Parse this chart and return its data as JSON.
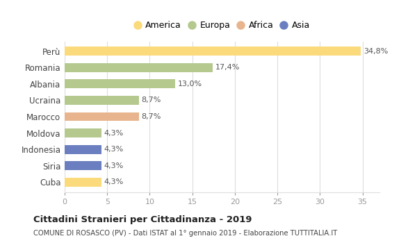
{
  "countries": [
    "Perù",
    "Romania",
    "Albania",
    "Ucraina",
    "Marocco",
    "Moldova",
    "Indonesia",
    "Siria",
    "Cuba"
  ],
  "values": [
    34.8,
    17.4,
    13.0,
    8.7,
    8.7,
    4.3,
    4.3,
    4.3,
    4.3
  ],
  "labels": [
    "34,8%",
    "17,4%",
    "13,0%",
    "8,7%",
    "8,7%",
    "4,3%",
    "4,3%",
    "4,3%",
    "4,3%"
  ],
  "colors": [
    "#FADA7A",
    "#B5C98E",
    "#B5C98E",
    "#B5C98E",
    "#E8B48E",
    "#B5C98E",
    "#6B7FC0",
    "#6B7FC0",
    "#FADA7A"
  ],
  "legend": [
    {
      "label": "America",
      "color": "#FADA7A"
    },
    {
      "label": "Europa",
      "color": "#B5C98E"
    },
    {
      "label": "Africa",
      "color": "#E8B48E"
    },
    {
      "label": "Asia",
      "color": "#6B7FC0"
    }
  ],
  "xlim": [
    0,
    37
  ],
  "xticks": [
    0,
    5,
    10,
    15,
    20,
    25,
    30,
    35
  ],
  "title": "Cittadini Stranieri per Cittadinanza - 2019",
  "subtitle": "COMUNE DI ROSASCO (PV) - Dati ISTAT al 1° gennaio 2019 - Elaborazione TUTTITALIA.IT",
  "bg_color": "#ffffff",
  "grid_color": "#dddddd"
}
